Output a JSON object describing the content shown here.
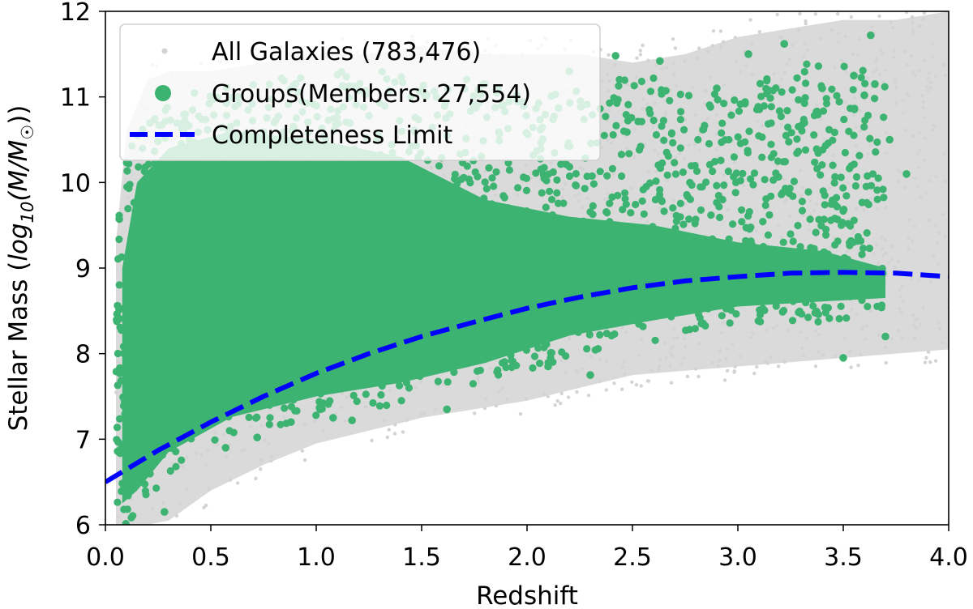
{
  "chart_data": {
    "type": "scatter",
    "title": "",
    "xlabel": "Redshift",
    "ylabel": "Stellar Mass (log10(M/M☉))",
    "ylabel_parts": {
      "prefix": "Stellar Mass (",
      "log": "log",
      "sub": "10",
      "arg": "(M/M",
      "sun": "☉",
      "close": "))"
    },
    "xlim": [
      0.0,
      4.0
    ],
    "ylim": [
      6,
      12
    ],
    "xticks": [
      "0.0",
      "0.5",
      "1.0",
      "1.5",
      "2.0",
      "2.5",
      "3.0",
      "3.5",
      "4.0"
    ],
    "yticks": [
      "6",
      "7",
      "8",
      "9",
      "10",
      "11",
      "12"
    ],
    "legend_position": "top-left",
    "series": [
      {
        "name": "All Galaxies",
        "count": "(783,476)",
        "kind": "scatter",
        "color": "#d3d3d3",
        "envelope": {
          "x": [
            0.05,
            0.1,
            0.2,
            0.3,
            0.5,
            0.75,
            1.0,
            1.25,
            1.5,
            1.75,
            2.0,
            2.25,
            2.5,
            2.75,
            3.0,
            3.25,
            3.5,
            3.75,
            4.0
          ],
          "lower": [
            6.0,
            6.0,
            6.0,
            6.05,
            6.4,
            6.7,
            6.95,
            7.1,
            7.25,
            7.35,
            7.45,
            7.6,
            7.75,
            7.8,
            7.85,
            7.9,
            7.95,
            8.0,
            8.05
          ],
          "upper": [
            9.3,
            10.6,
            11.2,
            11.3,
            11.3,
            11.4,
            11.5,
            11.5,
            11.6,
            11.5,
            11.5,
            11.5,
            11.4,
            11.5,
            11.7,
            11.8,
            11.9,
            11.9,
            12.0
          ]
        }
      },
      {
        "name": "Groups(Members: 27,554)",
        "kind": "scatter",
        "color": "#3cb371",
        "envelope": {
          "x": [
            0.05,
            0.1,
            0.2,
            0.3,
            0.5,
            0.75,
            1.0,
            1.25,
            1.5,
            1.75,
            2.0,
            2.25,
            2.5,
            2.75,
            3.0,
            3.25,
            3.5,
            3.7
          ],
          "lower": [
            6.0,
            6.0,
            6.3,
            6.6,
            6.95,
            7.1,
            7.25,
            7.35,
            7.45,
            7.6,
            7.8,
            8.0,
            8.1,
            8.2,
            8.3,
            8.3,
            8.4,
            8.4
          ],
          "upper": [
            9.6,
            10.3,
            10.8,
            11.0,
            11.1,
            11.2,
            11.3,
            11.3,
            11.3,
            11.2,
            11.0,
            11.1,
            11.3,
            11.1,
            11.0,
            11.4,
            11.4,
            11.3
          ]
        },
        "dense_upper": {
          "x": [
            0.08,
            0.15,
            0.3,
            0.6,
            1.0,
            1.4,
            1.8,
            2.2,
            2.6,
            3.0,
            3.4,
            3.7
          ],
          "y": [
            9.0,
            10.0,
            10.4,
            10.6,
            10.5,
            10.3,
            9.8,
            9.6,
            9.5,
            9.3,
            9.2,
            9.0
          ]
        },
        "sample_points": [
          {
            "x": 3.63,
            "y": 11.72
          },
          {
            "x": 3.22,
            "y": 11.62
          },
          {
            "x": 3.05,
            "y": 11.5
          },
          {
            "x": 2.42,
            "y": 11.48
          },
          {
            "x": 2.63,
            "y": 11.42
          },
          {
            "x": 3.55,
            "y": 11.25
          },
          {
            "x": 3.65,
            "y": 11.15
          },
          {
            "x": 3.4,
            "y": 11.1
          },
          {
            "x": 2.9,
            "y": 11.1
          },
          {
            "x": 3.6,
            "y": 11.02
          },
          {
            "x": 2.2,
            "y": 11.3
          },
          {
            "x": 3.5,
            "y": 7.95
          },
          {
            "x": 3.7,
            "y": 8.2
          },
          {
            "x": 1.62,
            "y": 7.35
          },
          {
            "x": 1.17,
            "y": 7.22
          },
          {
            "x": 1.08,
            "y": 7.25
          },
          {
            "x": 0.88,
            "y": 7.2
          },
          {
            "x": 0.28,
            "y": 6.15
          },
          {
            "x": 0.57,
            "y": 6.9
          },
          {
            "x": 0.72,
            "y": 7.02
          },
          {
            "x": 2.3,
            "y": 7.75
          },
          {
            "x": 2.1,
            "y": 7.85
          },
          {
            "x": 3.8,
            "y": 10.1
          },
          {
            "x": 3.72,
            "y": 10.5
          }
        ]
      },
      {
        "name": "Completeness Limit",
        "kind": "line",
        "style": "dashed",
        "color": "#0000ff",
        "x": [
          0.0,
          0.25,
          0.5,
          0.75,
          1.0,
          1.25,
          1.5,
          1.75,
          2.0,
          2.25,
          2.5,
          2.75,
          3.0,
          3.25,
          3.5,
          3.75,
          4.0
        ],
        "y": [
          6.5,
          6.87,
          7.2,
          7.5,
          7.77,
          8.0,
          8.2,
          8.37,
          8.53,
          8.66,
          8.77,
          8.85,
          8.9,
          8.94,
          8.95,
          8.94,
          8.9
        ]
      }
    ],
    "legend": [
      {
        "label": "All Galaxies (783,476)",
        "marker": "small-dot",
        "color": "#d3d3d3"
      },
      {
        "label": "Groups(Members: 27,554)",
        "marker": "dot",
        "color": "#3cb371"
      },
      {
        "label": "Completeness Limit",
        "marker": "dashed-line",
        "color": "#0000ff"
      }
    ]
  }
}
